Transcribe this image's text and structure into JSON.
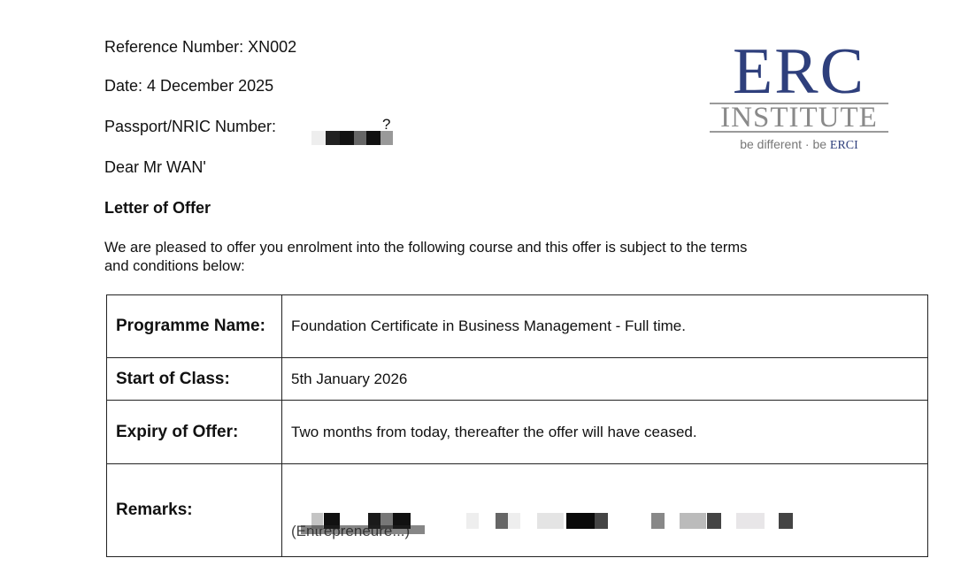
{
  "letter": {
    "reference": "Reference Number: XN002",
    "date": "Date: 4 December 2025",
    "passport_label": "Passport/NRIC Number:",
    "passport_visible_suffix": "?",
    "greeting": "Dear Mr WAN'",
    "title": "Letter of Offer",
    "intro_line1": "We are pleased to offer you enrolment into the following course and this offer is subject to the terms",
    "intro_line2": "and conditions below:"
  },
  "logo": {
    "main": "ERC",
    "sub": "INSTITUTE",
    "tagline": "be different · be",
    "tagline_brand": "ERCI",
    "brand_color": "#2e3f7c"
  },
  "offer_table": {
    "rows": [
      {
        "label": "Programme Name:",
        "value": "Foundation Certificate in Business Management  - Full time."
      },
      {
        "label": "Start of Class:",
        "value": "5th January 2026"
      },
      {
        "label": "Expiry of Offer:",
        "value": "Two months from today, thereafter the offer will have ceased."
      },
      {
        "label": "Remarks:",
        "value": "(Entrepreneure...)"
      }
    ]
  }
}
